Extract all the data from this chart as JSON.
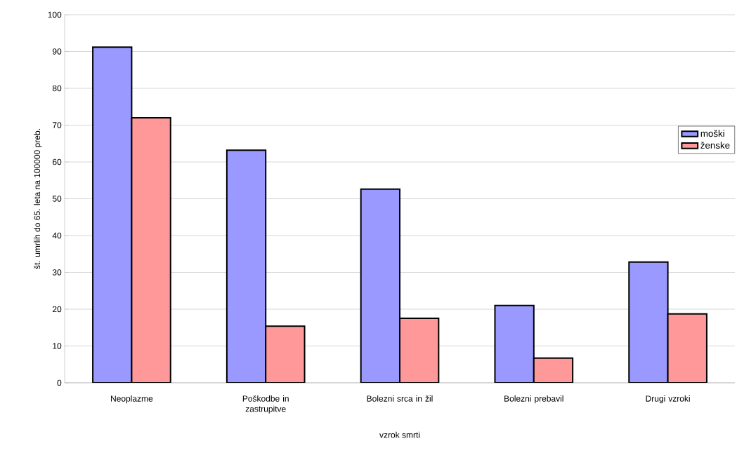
{
  "chart_data": {
    "type": "bar",
    "xlabel": "vzrok smrti",
    "ylabel": "št. umrlih do 65. leta na 100000 preb.",
    "categories": [
      "Neoplazme",
      "Poškodbe in zastrupitve",
      "Bolezni srca in žil",
      "Bolezni prebavil",
      "Drugi vzroki"
    ],
    "series": [
      {
        "name": "moški",
        "color": "#9999ff",
        "values": [
          91.2,
          63.2,
          52.6,
          21.0,
          32.8
        ]
      },
      {
        "name": "ženske",
        "color": "#ff9999",
        "values": [
          72.0,
          15.4,
          17.5,
          6.7,
          18.7
        ]
      }
    ],
    "ylim": [
      0,
      100
    ],
    "yticks": [
      0,
      10,
      20,
      30,
      40,
      50,
      60,
      70,
      80,
      90,
      100
    ],
    "grid": "y",
    "legend": "right"
  }
}
